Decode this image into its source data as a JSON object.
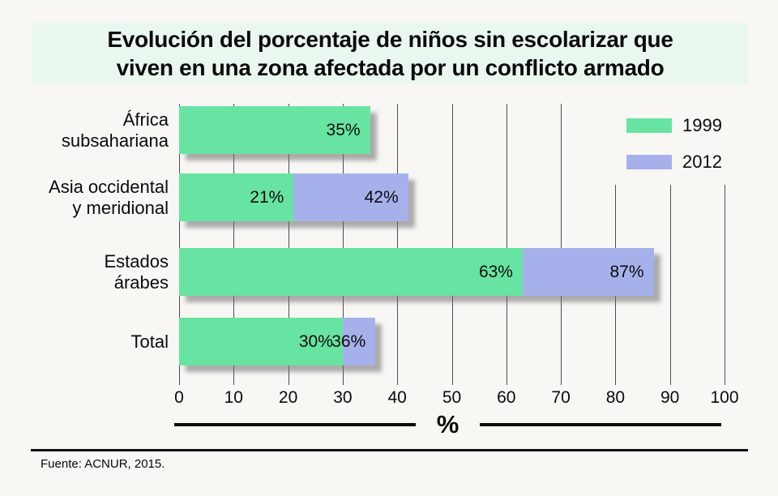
{
  "page": {
    "background": "#f8f7f4"
  },
  "title": {
    "lines": [
      "Evolución del porcentaje de niños sin escolarizar que",
      "viven en una zona afectada por un conflicto armado"
    ],
    "bg": "#eaf7ef",
    "accent_color": "#8fe9b6"
  },
  "legend": {
    "items": [
      {
        "label": "1999",
        "color": "#67e4a2"
      },
      {
        "label": "2012",
        "color": "#a6b1ec"
      }
    ]
  },
  "x_axis": {
    "label": "%"
  },
  "footer": {
    "source": "Fuente: ACNUR, 2015."
  },
  "chart_data": {
    "type": "bar",
    "orientation": "horizontal",
    "title": "Evolución del porcentaje de niños sin escolarizar que viven en una zona afectada por un conflicto armado",
    "categories": [
      "África subsahariana",
      "Asia occidental y meridional",
      "Estados árabes",
      "Total"
    ],
    "category_lines": [
      [
        "África",
        "subsahariana"
      ],
      [
        "Asia occidental",
        "y meridional"
      ],
      [
        "Estados",
        "árabes"
      ],
      [
        "Total"
      ]
    ],
    "series": [
      {
        "name": "1999",
        "color": "#67e4a2",
        "values": [
          35,
          21,
          63,
          30
        ]
      },
      {
        "name": "2012",
        "color": "#a6b1ec",
        "values": [
          null,
          42,
          87,
          36
        ]
      }
    ],
    "value_labels": [
      [
        "35%",
        "21%",
        "63%",
        "30%"
      ],
      [
        null,
        "42%",
        "87%",
        "36%"
      ]
    ],
    "xlabel": "%",
    "xlim": [
      0,
      100
    ],
    "x_ticks": [
      0,
      10,
      20,
      30,
      40,
      50,
      60,
      70,
      80,
      90,
      100
    ],
    "grid": true,
    "legend_position": "top-right",
    "source": "Fuente: ACNUR, 2015."
  }
}
